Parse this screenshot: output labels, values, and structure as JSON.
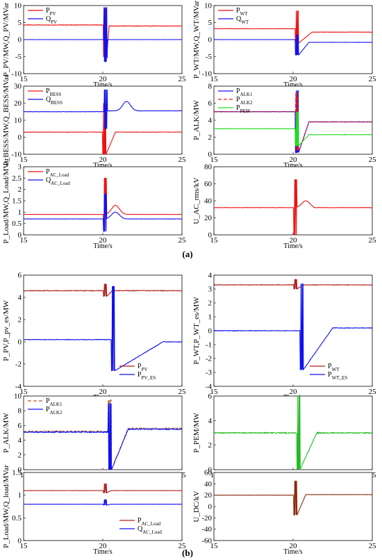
{
  "captions": [
    "(a)",
    "(b)"
  ],
  "chart_data": [
    {
      "id": "a1",
      "type": "line",
      "xlabel": "Time/s",
      "ylabel": "P_PV/MW,Q_PV/MVar",
      "xlim": [
        15,
        25
      ],
      "ylim": [
        -10,
        10
      ],
      "xticks": [
        15,
        20,
        25
      ],
      "yticks": [
        -10,
        -5,
        0,
        5,
        10
      ],
      "legend": "top-left",
      "series": [
        {
          "name": "P",
          "sub": "PV",
          "color": "#ee1111",
          "dash": "",
          "base_before": 4.3,
          "base_after": 4.0,
          "spike_hi": 9.0,
          "spike_lo": -5.0,
          "spike_at": 20.1,
          "recover": 20.4,
          "wiggle": 0.15
        },
        {
          "name": "Q",
          "sub": "PV",
          "color": "#1111ee",
          "dash": "",
          "base_before": 0.0,
          "base_after": 0.0,
          "spike_hi": 9.5,
          "spike_lo": -6.5,
          "spike_at": 20.12,
          "recover": 20.3,
          "wiggle": 0.05
        }
      ]
    },
    {
      "id": "a2",
      "type": "line",
      "xlabel": "Time/s",
      "ylabel": "P_WT/MW,Q_WT/MVar",
      "xlim": [
        15,
        25
      ],
      "ylim": [
        -10,
        10
      ],
      "xticks": [
        15,
        20,
        25
      ],
      "yticks": [
        -10,
        -5,
        0,
        5,
        10
      ],
      "legend": "top-left",
      "series": [
        {
          "name": "P",
          "sub": "WT",
          "color": "#ee1111",
          "dash": "",
          "base_before": 3.2,
          "base_after": 2.2,
          "spike_hi": 8.5,
          "spike_lo": -1.0,
          "spike_at": 20.2,
          "recover": 21.2,
          "wiggle": 0.1
        },
        {
          "name": "Q",
          "sub": "WT",
          "color": "#1111ee",
          "dash": "",
          "base_before": 0.0,
          "base_after": -0.8,
          "spike_hi": 1.5,
          "spike_lo": -4.5,
          "spike_at": 20.2,
          "recover": 21.0,
          "wiggle": 0.05
        }
      ]
    },
    {
      "id": "a3",
      "type": "line",
      "xlabel": "Time/s",
      "ylabel": "P_BESS/MW,Q_BESS/MVar",
      "xlim": [
        15,
        25
      ],
      "ylim": [
        -10,
        30
      ],
      "xticks": [
        15,
        20,
        25
      ],
      "yticks": [
        -10,
        0,
        10,
        20,
        30
      ],
      "legend": "top-left",
      "series": [
        {
          "name": "P",
          "sub": "BESS",
          "color": "#ee1111",
          "dash": "",
          "base_before": 3.0,
          "base_after": 3.0,
          "spike_hi": 20.0,
          "spike_lo": -10.0,
          "spike_at": 20.05,
          "recover": 20.8,
          "wiggle": 0.2
        },
        {
          "name": "Q",
          "sub": "BESS",
          "color": "#1111ee",
          "dash": "",
          "base_before": 15.0,
          "base_after": 15.5,
          "spike_hi": 28.0,
          "spike_lo": 5.0,
          "spike_at": 20.15,
          "recover": 22.5,
          "bump": 21.5,
          "bump_val": 21.0,
          "wiggle": 0.2
        }
      ]
    },
    {
      "id": "a4",
      "type": "line",
      "xlabel": "Time/s",
      "ylabel": "P_ALK/MW",
      "xlim": [
        15,
        25
      ],
      "ylim": [
        0,
        8
      ],
      "xticks": [
        15,
        20,
        25
      ],
      "yticks": [
        0,
        2,
        4,
        6,
        8
      ],
      "legend": "top-left",
      "series": [
        {
          "name": "P",
          "sub": "ALK1",
          "color": "#1111ee",
          "dash": "",
          "base_before": 5.0,
          "base_after": 3.8,
          "spike_hi": 7.5,
          "spike_lo": 0.2,
          "spike_at": 20.2,
          "recover": 21.0,
          "wiggle": 0.05
        },
        {
          "name": "P",
          "sub": "ALK2",
          "color": "#ee1111",
          "dash": "5,3",
          "base_before": 5.0,
          "base_after": 3.8,
          "spike_hi": 7.2,
          "spike_lo": 0.4,
          "spike_at": 20.22,
          "recover": 21.0,
          "wiggle": 0.05
        },
        {
          "name": "P",
          "sub": "PEM",
          "color": "#22dd22",
          "dash": "",
          "base_before": 3.0,
          "base_after": 2.3,
          "spike_hi": 5.0,
          "spike_lo": 1.0,
          "spike_at": 20.2,
          "recover": 21.0,
          "wiggle": 0.05
        }
      ]
    },
    {
      "id": "a5",
      "type": "line",
      "xlabel": "Time/s",
      "ylabel": "P_Load/MW,Q_Load/MVar",
      "xlim": [
        15,
        25
      ],
      "ylim": [
        0,
        3
      ],
      "xticks": [
        15,
        20,
        25
      ],
      "yticks": [
        0,
        0.5,
        1,
        1.5,
        2,
        2.5,
        3
      ],
      "legend": "top-left",
      "series": [
        {
          "name": "P",
          "sub": "AC_Load",
          "color": "#ee1111",
          "dash": "",
          "base_before": 0.9,
          "base_after": 0.9,
          "spike_hi": 2.5,
          "spike_lo": 0.2,
          "spike_at": 20.1,
          "recover": 22.0,
          "bump": 20.8,
          "bump_val": 1.3,
          "wiggle": 0.01
        },
        {
          "name": "Q",
          "sub": "AC_Load",
          "color": "#1111ee",
          "dash": "",
          "base_before": 0.7,
          "base_after": 0.7,
          "spike_hi": 1.8,
          "spike_lo": 0.15,
          "spike_at": 20.1,
          "recover": 22.0,
          "bump": 20.8,
          "bump_val": 1.0,
          "wiggle": 0.01
        }
      ]
    },
    {
      "id": "a6",
      "type": "line",
      "xlabel": "Time/s",
      "ylabel": "U_AC_rms/kV",
      "xlim": [
        15,
        25
      ],
      "ylim": [
        0,
        80
      ],
      "xticks": [
        15,
        20,
        25
      ],
      "yticks": [
        0,
        20,
        40,
        60,
        80
      ],
      "legend": "none",
      "series": [
        {
          "name": "",
          "sub": "",
          "color": "#ee1111",
          "dash": "",
          "base_before": 32,
          "base_after": 32,
          "spike_hi": 65,
          "spike_lo": 0,
          "spike_at": 20.1,
          "recover": 21.3,
          "bump": 20.8,
          "bump_val": 40,
          "wiggle": 0.3
        }
      ]
    },
    {
      "id": "b1",
      "type": "line",
      "xlabel": "Time/s",
      "ylabel": "P_PV,P_pv_es/MW",
      "xlim": [
        15,
        25
      ],
      "ylim": [
        -4,
        6
      ],
      "xticks": [
        15,
        20,
        25
      ],
      "yticks": [
        -4,
        -2,
        0,
        2,
        4,
        6
      ],
      "legend": "bottom-right",
      "series": [
        {
          "name": "P",
          "sub": "PV",
          "color": "#b22222",
          "dash": "",
          "base_before": 4.6,
          "base_after": 4.6,
          "spike_hi": 5.2,
          "spike_lo": 4.1,
          "spike_at": 20.1,
          "recover": 20.6,
          "wiggle": 0.06
        },
        {
          "name": "P",
          "sub": "PV_ES",
          "color": "#1111ee",
          "dash": "",
          "base_before": 0.2,
          "base_after": 0.0,
          "spike_hi": 5.0,
          "spike_lo": -2.6,
          "spike_at": 20.6,
          "recover": 23.8,
          "wiggle": 0.05
        }
      ]
    },
    {
      "id": "b2",
      "type": "line",
      "xlabel": "Time/s",
      "ylabel": "P_WT,P_WT_es/MW",
      "xlim": [
        15,
        25
      ],
      "ylim": [
        -4,
        4
      ],
      "xticks": [
        15,
        20,
        25
      ],
      "yticks": [
        -4,
        -3,
        -2,
        -1,
        0,
        1,
        2,
        3,
        4
      ],
      "legend": "bottom-right",
      "series": [
        {
          "name": "P",
          "sub": "WT",
          "color": "#b22222",
          "dash": "",
          "base_before": 3.3,
          "base_after": 3.3,
          "spike_hi": 3.7,
          "spike_lo": 3.0,
          "spike_at": 20.1,
          "recover": 20.6,
          "wiggle": 0.04
        },
        {
          "name": "P",
          "sub": "WT_ES",
          "color": "#1111ee",
          "dash": "",
          "base_before": 0.0,
          "base_after": 0.2,
          "spike_hi": 3.4,
          "spike_lo": -2.8,
          "spike_at": 20.5,
          "recover": 22.5,
          "wiggle": 0.04
        }
      ]
    },
    {
      "id": "b3",
      "type": "line",
      "xlabel": "Time/s",
      "ylabel": "P_ALK/MW",
      "xlim": [
        15,
        25
      ],
      "ylim": [
        0,
        10
      ],
      "xticks": [
        15,
        20,
        25
      ],
      "yticks": [
        0,
        2,
        4,
        6,
        8,
        10
      ],
      "legend": "top-left",
      "series": [
        {
          "name": "P",
          "sub": "ALK1",
          "color": "#b25b22",
          "dash": "5,3",
          "base_before": 5.2,
          "base_after": 5.6,
          "spike_hi": 9.5,
          "spike_lo": 0.0,
          "spike_at": 20.4,
          "recover": 21.6,
          "wiggle": 0.15
        },
        {
          "name": "P",
          "sub": "ALK2",
          "color": "#1111ee",
          "dash": "",
          "base_before": 5.1,
          "base_after": 5.5,
          "spike_hi": 9.0,
          "spike_lo": 0.0,
          "spike_at": 20.4,
          "recover": 21.6,
          "wiggle": 0.15
        }
      ]
    },
    {
      "id": "b4",
      "type": "line",
      "xlabel": "Time/s",
      "ylabel": "P_PEM/MW",
      "xlim": [
        15,
        25
      ],
      "ylim": [
        0,
        6
      ],
      "xticks": [
        15,
        20,
        25
      ],
      "yticks": [
        0,
        2,
        4,
        6
      ],
      "legend": "none",
      "series": [
        {
          "name": "",
          "sub": "",
          "color": "#22bb22",
          "dash": "",
          "base_before": 3.0,
          "base_after": 3.0,
          "spike_hi": 6.0,
          "spike_lo": 0.05,
          "spike_at": 20.3,
          "recover": 21.5,
          "wiggle": 0.08
        }
      ]
    },
    {
      "id": "b5",
      "type": "line",
      "xlabel": "Time/s",
      "ylabel": "P_Load/MW,Q_load/MVar",
      "xlim": [
        15,
        25
      ],
      "ylim": [
        0,
        1.5
      ],
      "xticks": [
        15,
        20,
        25
      ],
      "yticks": [
        0,
        0.5,
        1,
        1.5
      ],
      "legend": "bottom-right",
      "series": [
        {
          "name": "P",
          "sub": "AC_Load",
          "color": "#b22222",
          "dash": "",
          "base_before": 1.1,
          "base_after": 1.1,
          "spike_hi": 1.25,
          "spike_lo": 1.05,
          "spike_at": 20.1,
          "recover": 20.5,
          "wiggle": 0.005
        },
        {
          "name": "Q",
          "sub": "AC_Load",
          "color": "#1111ee",
          "dash": "",
          "base_before": 0.8,
          "base_after": 0.8,
          "spike_hi": 0.9,
          "spike_lo": 0.78,
          "spike_at": 20.1,
          "recover": 20.5,
          "wiggle": 0.003
        }
      ]
    },
    {
      "id": "b6",
      "type": "line",
      "xlabel": "Time/s",
      "ylabel": "U_DC/kV",
      "xlim": [
        15,
        25
      ],
      "ylim": [
        -60,
        60
      ],
      "xticks": [
        15,
        20,
        25
      ],
      "yticks": [
        -60,
        -40,
        -20,
        0,
        20,
        40,
        60
      ],
      "legend": "none",
      "series": [
        {
          "name": "",
          "sub": "",
          "color": "#8b2b0b",
          "dash": "",
          "base_before": 20,
          "base_after": 21,
          "spike_hi": 45,
          "spike_lo": -15,
          "spike_at": 20.1,
          "recover": 20.8,
          "wiggle": 0.4
        }
      ]
    }
  ]
}
